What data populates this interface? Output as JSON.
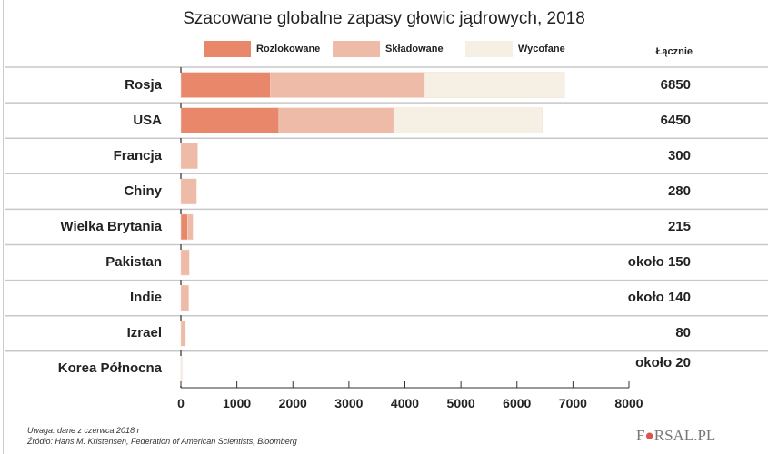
{
  "chart_data": {
    "type": "bar",
    "orientation": "horizontal",
    "stacked": true,
    "title": "Szacowane globalne zapasy głowic jądrowych, 2018",
    "categories": [
      "Rosja",
      "USA",
      "Francja",
      "Chiny",
      "Wielka Brytania",
      "Pakistan",
      "Indie",
      "Izrael",
      "Korea Północna"
    ],
    "series": [
      {
        "name": "Rozlokowane",
        "color": "#e8876a",
        "values": [
          1600,
          1750,
          0,
          0,
          120,
          0,
          0,
          0,
          0
        ]
      },
      {
        "name": "Składowane",
        "color": "#eebba8",
        "values": [
          2750,
          2050,
          300,
          280,
          95,
          150,
          140,
          80,
          0
        ]
      },
      {
        "name": "Wycofane",
        "color": "#f6f0e4",
        "values": [
          2500,
          2650,
          0,
          0,
          0,
          0,
          0,
          0,
          20
        ]
      }
    ],
    "totals_header": "Łącznie",
    "totals": [
      "6850",
      "6450",
      "300",
      "280",
      "215",
      "około 150",
      "około 140",
      "80",
      "około 20"
    ],
    "xlim": [
      0,
      8000
    ],
    "xticks": [
      "0",
      "1000",
      "2000",
      "3000",
      "4000",
      "5000",
      "6000",
      "7000",
      "8000"
    ],
    "grid": "horizontal row separators",
    "legend_placement": "top"
  },
  "notes": {
    "note": "Uwaga: dane z czerwca 2018 r",
    "source": "Źródło: Hans M. Kristensen, Federation of American Scientists, Bloomberg"
  },
  "logo": "FORSAL.PL"
}
